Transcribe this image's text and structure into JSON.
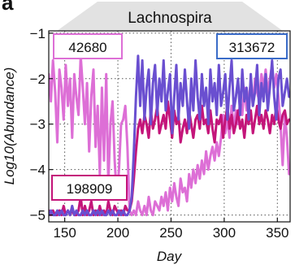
{
  "panel_letter": "a",
  "chart_data": {
    "type": "line",
    "title": "Lachnospira",
    "xlabel": "Day",
    "ylabel": "Log10(Abundance)",
    "xlim": [
      135,
      362
    ],
    "ylim": [
      -5.15,
      -0.95
    ],
    "xticks": [
      150,
      200,
      250,
      300,
      350
    ],
    "yticks": [
      -1,
      -2,
      -3,
      -4,
      -5
    ],
    "xtick_labels": [
      "150",
      "200",
      "250",
      "300",
      "350"
    ],
    "ytick_labels": [
      "−1",
      "−2",
      "−3",
      "−4",
      "−5"
    ],
    "grid": true,
    "series": [
      {
        "name": "42680",
        "color": "#dd6fd6",
        "x": [
          135,
          137,
          139,
          141,
          143,
          145,
          147,
          149,
          151,
          153,
          155,
          157,
          159,
          161,
          163,
          165,
          167,
          169,
          171,
          173,
          175,
          177,
          179,
          181,
          183,
          185,
          187,
          189,
          191,
          193,
          195,
          197,
          199,
          201,
          203,
          205,
          207,
          209,
          211,
          213,
          215,
          217,
          219,
          221,
          223,
          225,
          227,
          229,
          231,
          233,
          235,
          237,
          239,
          241,
          243,
          245,
          247,
          249,
          251,
          253,
          255,
          257,
          259,
          261,
          263,
          265,
          267,
          269,
          271,
          273,
          275,
          277,
          279,
          281,
          283,
          285,
          287,
          289,
          291,
          293,
          295,
          297,
          299,
          301,
          303,
          305,
          307,
          309,
          311,
          313,
          315,
          317,
          319,
          321,
          323,
          325,
          327,
          329,
          331,
          333,
          335,
          337,
          339,
          341,
          343,
          345,
          347,
          349,
          351,
          353,
          355,
          357,
          359,
          361
        ],
        "y": [
          -1.9,
          -2.5,
          -1.6,
          -2.3,
          -3.4,
          -1.8,
          -2.2,
          -2.9,
          -1.7,
          -2.6,
          -2.0,
          -3.3,
          -1.9,
          -2.4,
          -2.8,
          -1.5,
          -2.2,
          -3.0,
          -2.1,
          -3.6,
          -2.4,
          -1.8,
          -3.5,
          -2.6,
          -4.1,
          -2.2,
          -3.8,
          -1.9,
          -4.3,
          -3.0,
          -2.5,
          -3.8,
          -4.6,
          -4.0,
          -3.0,
          -2.9,
          -2.6,
          -3.5,
          -4.9,
          -5.0,
          -4.9,
          -5.0,
          -4.7,
          -4.9,
          -5.0,
          -4.8,
          -5.0,
          -4.6,
          -4.9,
          -5.0,
          -4.7,
          -4.8,
          -4.9,
          -4.6,
          -4.8,
          -4.5,
          -4.9,
          -4.4,
          -4.7,
          -4.3,
          -4.6,
          -4.8,
          -4.2,
          -4.5,
          -4.4,
          -4.7,
          -4.1,
          -4.4,
          -4.0,
          -4.3,
          -3.9,
          -4.2,
          -3.8,
          -4.1,
          -3.6,
          -4.0,
          -3.7,
          -3.5,
          -3.8,
          -3.4,
          -3.7,
          -3.3,
          -2.8,
          -3.2,
          -2.9,
          -3.3,
          -2.6,
          -3.1,
          -2.7,
          -3.0,
          -2.5,
          -2.8,
          -2.2,
          -2.7,
          -2.4,
          -2.1,
          -2.6,
          -2.0,
          -2.3,
          -2.5,
          -1.9,
          -2.2,
          -1.8,
          -2.3,
          -2.0,
          -1.7,
          -2.2,
          -1.9,
          -2.4,
          -3.0,
          -3.9,
          -2.8,
          -3.3,
          -4.1
        ]
      },
      {
        "name": "198909",
        "color": "#c4157a",
        "x": [
          135,
          137,
          139,
          141,
          143,
          145,
          147,
          149,
          151,
          153,
          155,
          157,
          159,
          161,
          163,
          165,
          167,
          169,
          171,
          173,
          175,
          177,
          179,
          181,
          183,
          185,
          187,
          189,
          191,
          193,
          195,
          197,
          199,
          201,
          203,
          205,
          207,
          209,
          211,
          213,
          215,
          217,
          219,
          221,
          223,
          225,
          227,
          229,
          231,
          233,
          235,
          237,
          239,
          241,
          243,
          245,
          247,
          249,
          251,
          253,
          255,
          257,
          259,
          261,
          263,
          265,
          267,
          269,
          271,
          273,
          275,
          277,
          279,
          281,
          283,
          285,
          287,
          289,
          291,
          293,
          295,
          297,
          299,
          301,
          303,
          305,
          307,
          309,
          311,
          313,
          315,
          317,
          319,
          321,
          323,
          325,
          327,
          329,
          331,
          333,
          335,
          337,
          339,
          341,
          343,
          345,
          347,
          349,
          351,
          353,
          355,
          357,
          359,
          361
        ],
        "y": [
          -4.9,
          -5.0,
          -4.9,
          -5.0,
          -5.0,
          -4.9,
          -5.0,
          -4.8,
          -5.0,
          -4.9,
          -5.0,
          -4.9,
          -5.0,
          -5.0,
          -4.9,
          -4.6,
          -5.0,
          -4.8,
          -5.0,
          -4.9,
          -4.7,
          -5.0,
          -4.9,
          -5.0,
          -4.8,
          -5.0,
          -4.9,
          -5.0,
          -4.7,
          -4.9,
          -5.0,
          -4.8,
          -4.9,
          -5.0,
          -4.9,
          -5.0,
          -4.8,
          -4.9,
          -4.9,
          -4.7,
          -4.2,
          -3.6,
          -3.1,
          -2.9,
          -3.2,
          -2.8,
          -3.0,
          -3.3,
          -2.7,
          -3.1,
          -2.9,
          -2.6,
          -3.2,
          -3.0,
          -2.8,
          -3.1,
          -2.5,
          -2.9,
          -3.3,
          -2.7,
          -3.0,
          -2.8,
          -3.4,
          -3.1,
          -2.9,
          -3.2,
          -2.7,
          -3.0,
          -3.3,
          -2.9,
          -2.8,
          -3.1,
          -2.6,
          -3.0,
          -2.9,
          -3.2,
          -2.7,
          -3.1,
          -3.4,
          -2.9,
          -3.0,
          -2.8,
          -3.3,
          -2.9,
          -2.6,
          -3.1,
          -2.8,
          -3.2,
          -3.0,
          -2.7,
          -3.1,
          -2.9,
          -3.3,
          -2.8,
          -3.0,
          -2.7,
          -3.2,
          -2.9,
          -2.6,
          -3.0,
          -2.8,
          -3.1,
          -2.7,
          -2.9,
          -3.2,
          -2.8,
          -3.0,
          -2.6,
          -2.9,
          -3.1,
          -2.8,
          -2.7,
          -3.0,
          -2.9
        ]
      },
      {
        "name": "313672",
        "color": "#6a4fd0",
        "x": [
          135,
          137,
          139,
          141,
          143,
          145,
          147,
          149,
          151,
          153,
          155,
          157,
          159,
          161,
          163,
          165,
          167,
          169,
          171,
          173,
          175,
          177,
          179,
          181,
          183,
          185,
          187,
          189,
          191,
          193,
          195,
          197,
          199,
          201,
          203,
          205,
          207,
          209,
          211,
          213,
          215,
          217,
          219,
          221,
          223,
          225,
          227,
          229,
          231,
          233,
          235,
          237,
          239,
          241,
          243,
          245,
          247,
          249,
          251,
          253,
          255,
          257,
          259,
          261,
          263,
          265,
          267,
          269,
          271,
          273,
          275,
          277,
          279,
          281,
          283,
          285,
          287,
          289,
          291,
          293,
          295,
          297,
          299,
          301,
          303,
          305,
          307,
          309,
          311,
          313,
          315,
          317,
          319,
          321,
          323,
          325,
          327,
          329,
          331,
          333,
          335,
          337,
          339,
          341,
          343,
          345,
          347,
          349,
          351,
          353,
          355,
          357,
          359,
          361
        ],
        "y": [
          -5.0,
          -4.9,
          -5.0,
          -5.0,
          -4.9,
          -5.0,
          -4.9,
          -5.0,
          -5.0,
          -4.9,
          -5.0,
          -4.8,
          -5.0,
          -4.9,
          -5.0,
          -5.0,
          -4.9,
          -5.0,
          -4.9,
          -5.0,
          -5.0,
          -4.9,
          -5.0,
          -4.9,
          -5.0,
          -4.9,
          -5.0,
          -5.0,
          -4.9,
          -5.0,
          -4.9,
          -5.0,
          -5.0,
          -4.9,
          -5.0,
          -4.9,
          -5.0,
          -5.0,
          -4.9,
          -4.6,
          -3.6,
          -2.4,
          -1.5,
          -2.6,
          -1.6,
          -2.9,
          -2.2,
          -1.8,
          -3.0,
          -2.1,
          -1.7,
          -2.8,
          -2.0,
          -2.5,
          -1.6,
          -2.7,
          -2.3,
          -1.9,
          -3.2,
          -2.4,
          -1.7,
          -2.9,
          -2.1,
          -2.6,
          -1.8,
          -2.5,
          -3.1,
          -2.0,
          -2.7,
          -1.6,
          -2.4,
          -2.9,
          -1.9,
          -2.6,
          -2.2,
          -3.0,
          -1.8,
          -2.5,
          -2.1,
          -2.8,
          -1.7,
          -2.6,
          -2.3,
          -1.9,
          -2.9,
          -2.2,
          -1.6,
          -2.7,
          -2.4,
          -2.0,
          -2.8,
          -1.8,
          -2.5,
          -2.2,
          -2.9,
          -1.9,
          -2.6,
          -2.3,
          -1.7,
          -2.8,
          -2.1,
          -2.5,
          -1.9,
          -2.7,
          -2.2,
          -1.6,
          -2.4,
          -2.9,
          -2.0,
          -1.8,
          -2.6,
          -2.3,
          -2.0,
          -2.4
        ]
      }
    ],
    "labels": [
      {
        "text": "42680",
        "series_index": 0,
        "position": "top-left"
      },
      {
        "text": "313672",
        "series_index": 2,
        "position": "top-right"
      },
      {
        "text": "198909",
        "series_index": 1,
        "position": "bottom-left"
      }
    ]
  }
}
